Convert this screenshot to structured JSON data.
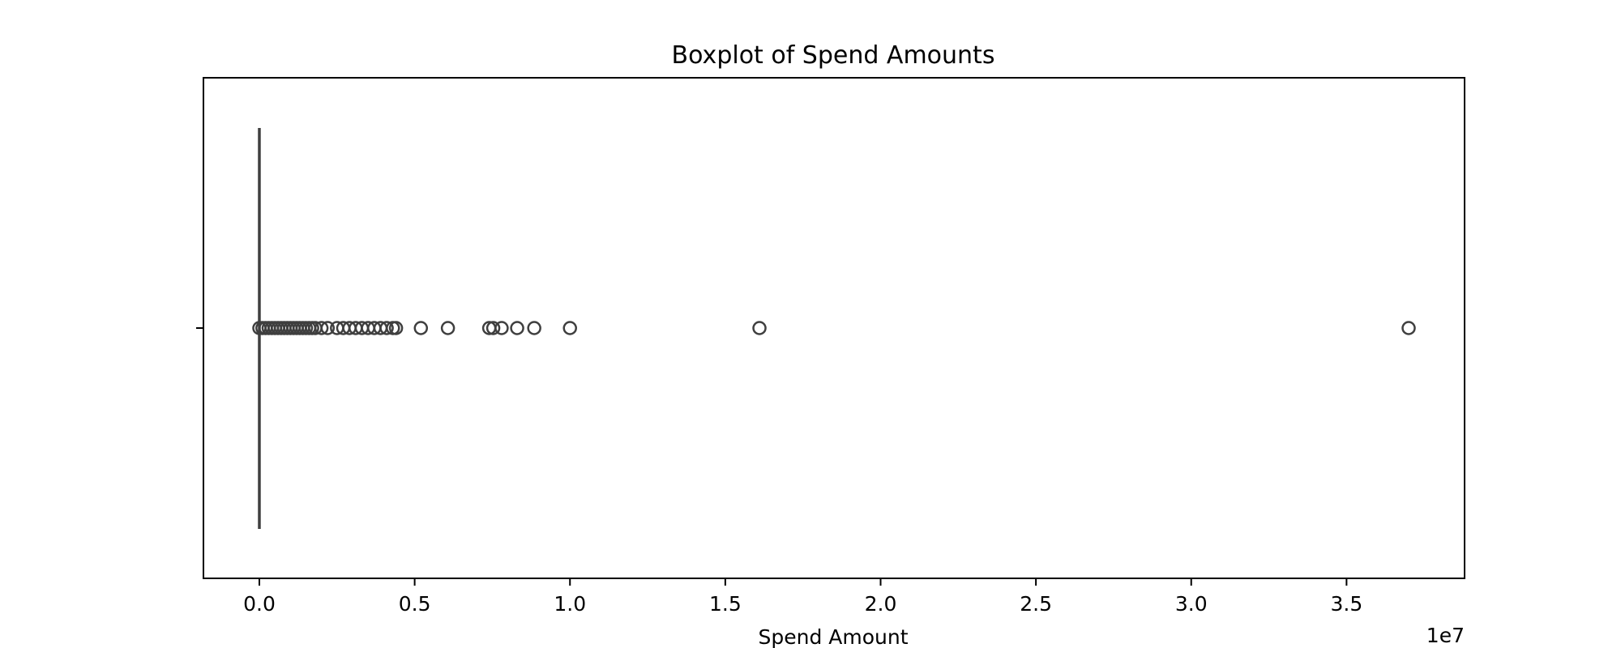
{
  "chart_data": {
    "type": "boxplot",
    "orientation": "horizontal",
    "title": "Boxplot of Spend Amounts",
    "xlabel": "Spend Amount",
    "ylabel": "",
    "x_offset_label": "1e7",
    "xlim": [
      -0.18,
      3.88
    ],
    "x_ticks": [
      0.0,
      0.5,
      1.0,
      1.5,
      2.0,
      2.5,
      3.0,
      3.5
    ],
    "x_tick_labels": [
      "0.0",
      "0.5",
      "1.0",
      "1.5",
      "2.0",
      "2.5",
      "3.0",
      "3.5"
    ],
    "grid": false,
    "box": {
      "whisker_low": 0.0,
      "q1": 0.0,
      "median": 0.0,
      "q3": 0.0,
      "whisker_high": 0.0,
      "outliers": [
        0.0,
        0.01,
        0.02,
        0.03,
        0.04,
        0.05,
        0.06,
        0.07,
        0.08,
        0.09,
        0.1,
        0.11,
        0.12,
        0.13,
        0.14,
        0.15,
        0.16,
        0.17,
        0.18,
        0.2,
        0.22,
        0.25,
        0.27,
        0.29,
        0.31,
        0.33,
        0.35,
        0.37,
        0.39,
        0.41,
        0.43,
        0.44,
        0.52,
        0.607,
        0.74,
        0.753,
        0.78,
        0.83,
        0.885,
        1.0,
        1.61,
        3.7
      ]
    }
  }
}
